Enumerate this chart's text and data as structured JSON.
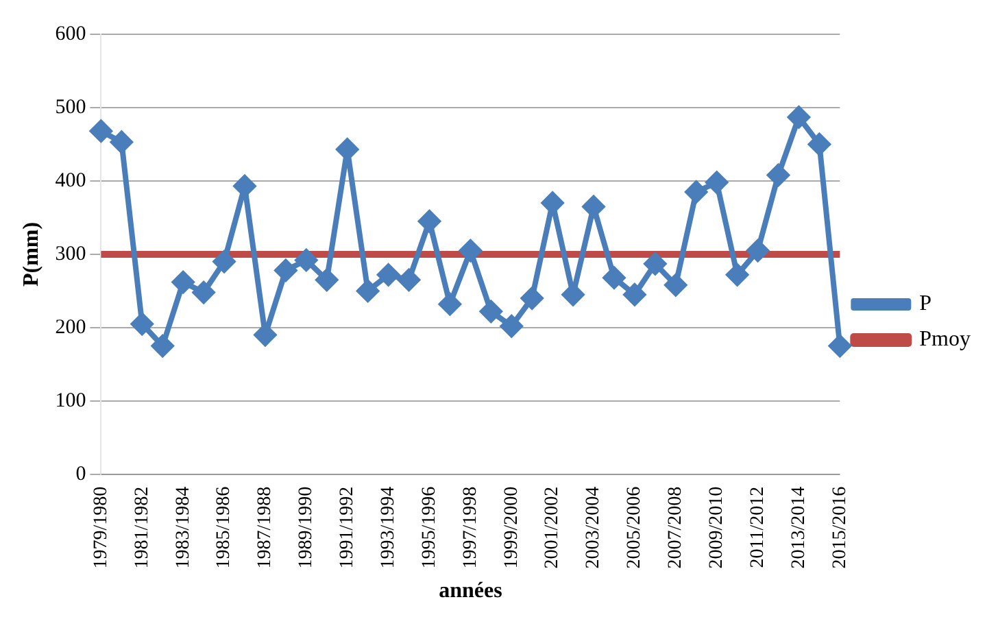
{
  "chart_data": {
    "type": "line",
    "xlabel": "années",
    "ylabel": "P(mm)",
    "categories": [
      "1979/1980",
      null,
      "1981/1982",
      null,
      "1983/1984",
      null,
      "1985/1986",
      null,
      "1987/1988",
      null,
      "1989/1990",
      null,
      "1991/1992",
      null,
      "1993/1994",
      null,
      "1995/1996",
      null,
      "1997/1998",
      null,
      "1999/2000",
      null,
      "2001/2002",
      null,
      "2003/2004",
      null,
      "2005/2006",
      null,
      "2007/2008",
      null,
      "2009/2010",
      null,
      "2011/2012",
      null,
      "2013/2014",
      null,
      "2015/2016"
    ],
    "series": [
      {
        "name": "P",
        "color": "#4a7ebb",
        "marker": "diamond",
        "values": [
          468,
          453,
          205,
          175,
          262,
          248,
          290,
          393,
          190,
          278,
          292,
          265,
          443,
          250,
          272,
          265,
          345,
          232,
          305,
          222,
          202,
          240,
          370,
          245,
          365,
          268,
          245,
          287,
          258,
          385,
          398,
          272,
          305,
          408,
          487,
          450,
          175
        ]
      },
      {
        "name": "Pmoy",
        "color": "#be4b48",
        "marker": "none",
        "values": [
          300,
          300,
          300,
          300,
          300,
          300,
          300,
          300,
          300,
          300,
          300,
          300,
          300,
          300,
          300,
          300,
          300,
          300,
          300,
          300,
          300,
          300,
          300,
          300,
          300,
          300,
          300,
          300,
          300,
          300,
          300,
          300,
          300,
          300,
          300,
          300,
          300
        ]
      }
    ],
    "ylim": [
      0,
      600
    ],
    "yticks": [
      0,
      100,
      200,
      300,
      400,
      500,
      600
    ],
    "grid": "y",
    "legend": "right"
  }
}
